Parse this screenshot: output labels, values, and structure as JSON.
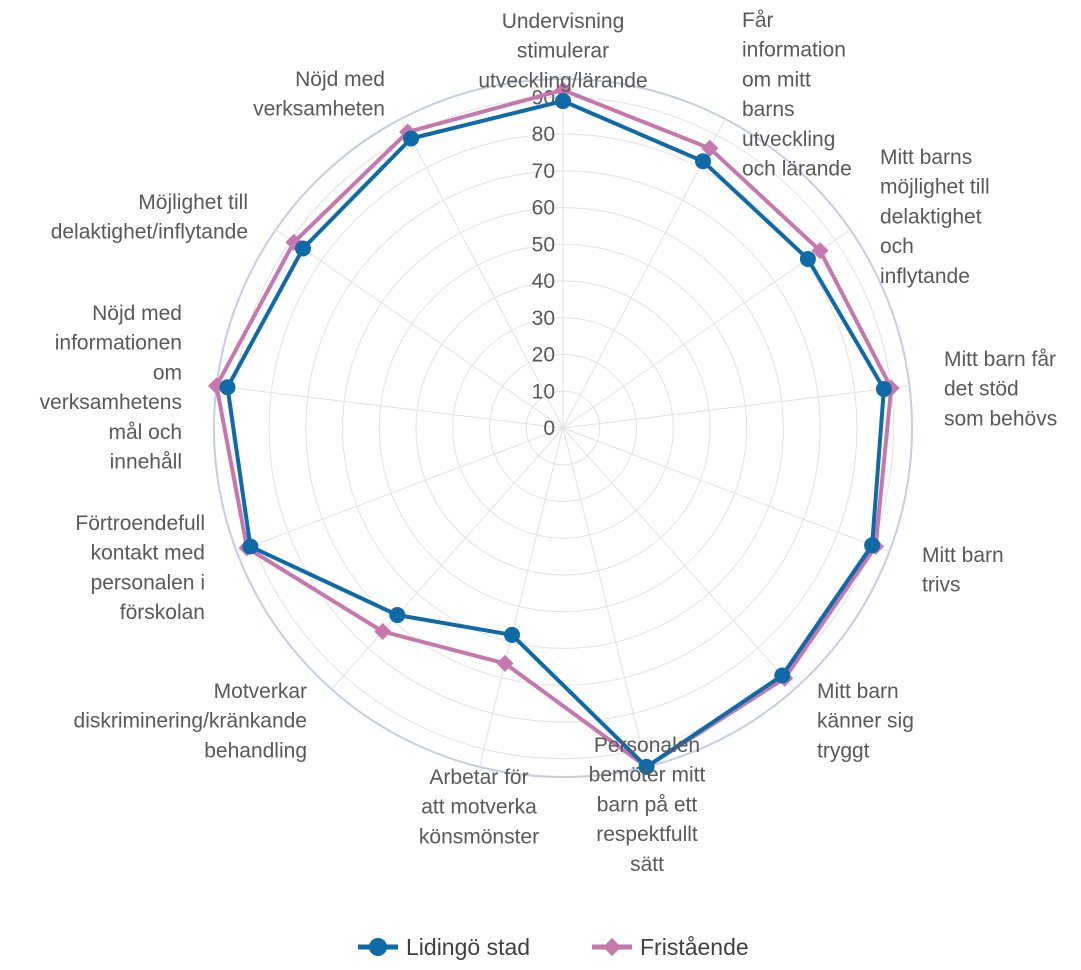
{
  "chart_data": {
    "type": "radar",
    "title": "",
    "rlim": [
      0,
      90
    ],
    "ticks": [
      0,
      10,
      20,
      30,
      40,
      50,
      60,
      70,
      80,
      90
    ],
    "grid": true,
    "legend_position": "bottom",
    "categories": [
      "Undervisning stimulerar utveckling/lärande",
      "Får information om mitt barns utveckling och lärande",
      "Mitt barns möjlighet till delaktighet och inflytande",
      "Mitt barn får det stöd som behövs",
      "Mitt barn trivs",
      "Mitt barn känner sig tryggt",
      "Personalen bemöter mitt barn på ett respektfullt sätt",
      "Arbetar för att motverka könsmönster",
      "Motverkar diskriminering/kränkande behandling",
      "Förtroendefull kontakt med personalen i förskolan",
      "Nöjd med informationen om verksamhetens mål och innehåll",
      "Möjlighet till delaktighet/inflytande",
      "Nöjd med verksamheten"
    ],
    "series": [
      {
        "name": "Lidingö stad",
        "color": "#0f6aa8",
        "marker": "circle",
        "values": [
          89,
          82,
          81,
          88,
          90,
          90,
          95,
          58,
          68,
          91,
          92,
          86,
          89
        ]
      },
      {
        "name": "Fristående",
        "color": "#c678ae",
        "marker": "diamond",
        "values": [
          92,
          86,
          85,
          90,
          91,
          91,
          95,
          66,
          74,
          92,
          95,
          89,
          91
        ]
      }
    ]
  }
}
